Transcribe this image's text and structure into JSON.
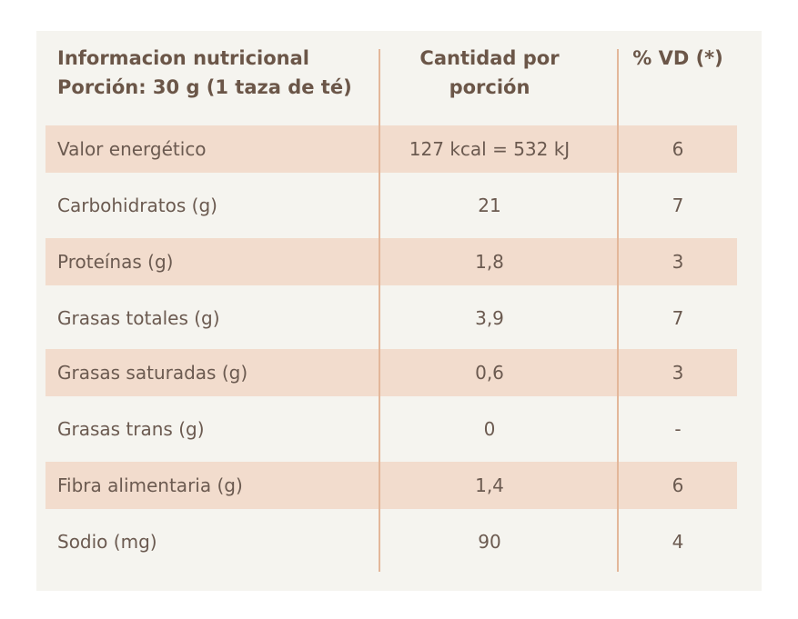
{
  "table": {
    "header": {
      "col1_line1": "Informacion nutricional",
      "col1_line2": "Porción: 30 g (1 taza de té)",
      "col2_line1": "Cantidad por",
      "col2_line2": "porción",
      "col3": "% VD (*)"
    },
    "rows": [
      {
        "name": "Valor energético",
        "qty": "127 kcal = 532 kJ",
        "vd": "6"
      },
      {
        "name": "Carbohidratos (g)",
        "qty": "21",
        "vd": "7"
      },
      {
        "name": "Proteínas (g)",
        "qty": "1,8",
        "vd": "3"
      },
      {
        "name": "Grasas totales (g)",
        "qty": "3,9",
        "vd": "7"
      },
      {
        "name": "Grasas saturadas (g)",
        "qty": "0,6",
        "vd": "3"
      },
      {
        "name": "Grasas trans (g)",
        "qty": "0",
        "vd": "-"
      },
      {
        "name": "Fibra alimentaria (g)",
        "qty": "1,4",
        "vd": "6"
      },
      {
        "name": "Sodio (mg)",
        "qty": "90",
        "vd": "4"
      }
    ]
  }
}
